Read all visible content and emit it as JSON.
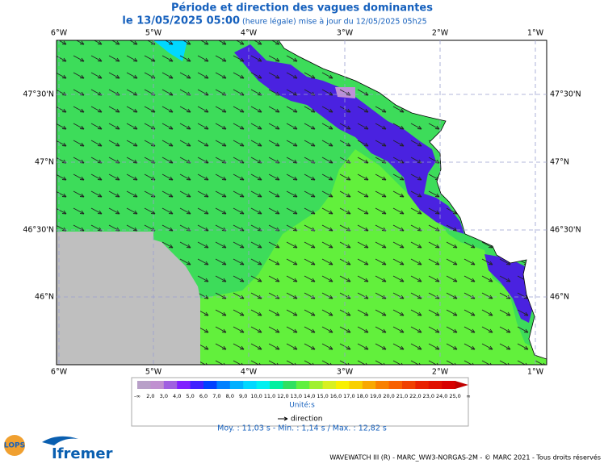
{
  "header": {
    "title": "Période et direction des vagues dominantes",
    "date": "le 13/05/2025 05:00",
    "update": "(heure légale) mise à jour du 12/05/2025 05h25"
  },
  "map": {
    "lon_labels": [
      "6°W",
      "5°W",
      "4°W",
      "3°W",
      "2°W",
      "1°W"
    ],
    "lat_labels": [
      "47°30'N",
      "47°N",
      "46°30'N",
      "46°N"
    ]
  },
  "legend": {
    "scale": [
      "-∞",
      "2,0",
      "3,0",
      "4,0",
      "5,0",
      "6,0",
      "7,0",
      "8,0",
      "9,0",
      "10,0",
      "11,0",
      "12,0",
      "13,0",
      "14,0",
      "15,0",
      "16,0",
      "17,0",
      "18,0",
      "19,0",
      "20,0",
      "21,0",
      "22,0",
      "23,0",
      "24,0",
      "25,0",
      "∞"
    ],
    "colors": [
      "#b8a0c8",
      "#c090d0",
      "#a060e0",
      "#8020ff",
      "#4020ff",
      "#0040ff",
      "#0080ff",
      "#00b0ff",
      "#00d8ff",
      "#00f0f0",
      "#00f0a0",
      "#30e060",
      "#60f040",
      "#a0f030",
      "#d8f020",
      "#f8f000",
      "#f8d000",
      "#f8a800",
      "#f88000",
      "#f86000",
      "#f04000",
      "#e82000",
      "#e01000",
      "#d80000",
      "#c00000"
    ],
    "unit": "Unité:s",
    "direction": "direction",
    "stats": "Moy. : 11,03 s   -   Min. : 1,14 s / Max. : 12,82 s"
  },
  "footer": {
    "credit": "WAVEWATCH III (R) - MARC_WW3-NORGAS-2M - © MARC 2021 - Tous droits réservés",
    "logo_lops": "LOPS",
    "logo_ifremer": "Ifremer"
  }
}
